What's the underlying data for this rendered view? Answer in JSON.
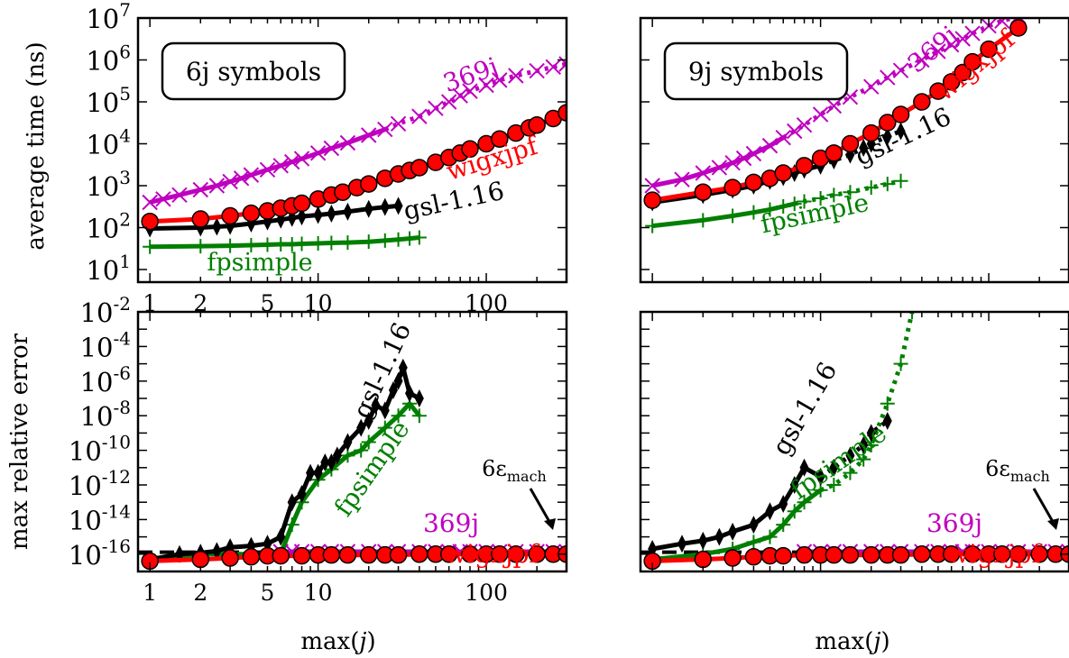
{
  "figure": {
    "xlabel_upper_left": "",
    "xlabel_left": "max(",
    "xlabel_var": "j",
    "xlabel_right": ")",
    "ylabel_top": "average time (ns)",
    "ylabel_bottom": "max relative error",
    "eps_label_main": "6ε",
    "eps_label_sub": "mach"
  },
  "chart_data": [
    {
      "type": "line",
      "panel": "top-left",
      "box_label": "6j symbols",
      "xscale": "log",
      "yscale": "log",
      "xlim": [
        0.85,
        300
      ],
      "ylim": [
        5,
        10000000
      ],
      "xticks": [
        1,
        2,
        5,
        10,
        100
      ],
      "yticks": [
        10,
        100,
        1000,
        10000,
        100000,
        1000000,
        10000000
      ],
      "ytick_labels": [
        [
          "10",
          "1"
        ],
        [
          "10",
          "2"
        ],
        [
          "10",
          "3"
        ],
        [
          "10",
          "4"
        ],
        [
          "10",
          "5"
        ],
        [
          "10",
          "6"
        ],
        [
          "10",
          "7"
        ]
      ],
      "series": [
        {
          "name": "369j",
          "color": "#bf00bf",
          "marker": "x",
          "x": [
            1,
            1.2,
            1.5,
            2,
            2.5,
            3,
            3.5,
            4,
            5,
            6,
            7,
            8,
            10,
            12,
            15,
            20,
            25,
            30,
            40,
            50,
            60,
            70,
            80,
            100,
            120,
            150,
            200,
            250,
            300
          ],
          "y": [
            400,
            480,
            600,
            800,
            1000,
            1250,
            1500,
            1800,
            2400,
            3000,
            3700,
            4400,
            6000,
            7800,
            10500,
            16000,
            22000,
            30000,
            45000,
            70000,
            100000,
            140000,
            180000,
            250000,
            330000,
            420000,
            550000,
            680000,
            800000
          ]
        },
        {
          "name": "wigxjpf",
          "color": "#ff0000",
          "marker": "o",
          "x": [
            1,
            2,
            3,
            4,
            5,
            6,
            7,
            8,
            10,
            12,
            14,
            17,
            20,
            25,
            30,
            35,
            40,
            50,
            60,
            70,
            80,
            100,
            120,
            150,
            180,
            200,
            250,
            300
          ],
          "y": [
            140,
            160,
            190,
            220,
            250,
            290,
            330,
            380,
            480,
            600,
            700,
            900,
            1100,
            1500,
            1900,
            2300,
            2700,
            3600,
            4700,
            6000,
            7500,
            10000,
            13000,
            18000,
            24000,
            28000,
            40000,
            55000
          ]
        },
        {
          "name": "gsl-1.16",
          "color": "#000000",
          "marker": "d",
          "x": [
            1,
            2,
            2.5,
            3,
            4,
            5,
            6,
            7,
            8,
            10,
            12,
            15,
            20,
            25,
            30
          ],
          "y": [
            95,
            100,
            105,
            110,
            125,
            140,
            155,
            170,
            185,
            200,
            215,
            240,
            280,
            310,
            330
          ]
        },
        {
          "name": "fpsimple",
          "color": "#007f00",
          "marker": "+",
          "x": [
            1,
            2,
            3,
            4,
            5,
            6,
            7,
            8,
            10,
            12,
            15,
            20,
            25,
            30,
            35,
            40
          ],
          "y": [
            35,
            36,
            37,
            38,
            39,
            40,
            40,
            41,
            42,
            43,
            44,
            46,
            49,
            52,
            55,
            58
          ]
        }
      ],
      "series_labels": [
        "369j",
        "wigxjpf",
        "gsl-1.16",
        "fpsimple"
      ]
    },
    {
      "type": "line",
      "panel": "top-right",
      "box_label": "9j symbols",
      "xscale": "log",
      "yscale": "log",
      "xlim": [
        0.85,
        300
      ],
      "ylim": [
        5,
        10000000
      ],
      "series": [
        {
          "name": "369j",
          "color": "#bf00bf",
          "marker": "x",
          "x": [
            1,
            1.5,
            2,
            2.5,
            3,
            3.5,
            4,
            5,
            6,
            7,
            8,
            10,
            12,
            15,
            20,
            25,
            30,
            40,
            50,
            60,
            70,
            80,
            100,
            120,
            150,
            200
          ],
          "y": [
            1000,
            1400,
            2000,
            2700,
            3500,
            4500,
            5800,
            9000,
            14000,
            20000,
            28000,
            50000,
            80000,
            130000,
            230000,
            380000,
            560000,
            1000000,
            1600000,
            2300000,
            3200000,
            4300000,
            6500000,
            8500000,
            11000000,
            16000000
          ]
        },
        {
          "name": "wigxjpf",
          "color": "#ff0000",
          "marker": "o",
          "x": [
            1,
            2,
            3,
            4,
            5,
            6,
            8,
            10,
            12,
            15,
            20,
            25,
            30,
            40,
            50,
            60,
            70,
            80,
            100,
            150
          ],
          "y": [
            450,
            700,
            900,
            1200,
            1500,
            2000,
            3000,
            4500,
            6000,
            10000,
            18000,
            32000,
            50000,
            100000,
            180000,
            300000,
            500000,
            900000,
            1800000,
            5800000
          ]
        },
        {
          "name": "gsl-1.16",
          "color": "#000000",
          "marker": "d",
          "x": [
            1,
            2,
            3,
            4,
            5,
            6,
            7,
            8,
            10,
            12,
            15,
            18,
            20,
            25,
            30
          ],
          "y": [
            400,
            600,
            800,
            1000,
            1300,
            1600,
            2000,
            2400,
            3000,
            4000,
            5500,
            8000,
            10000,
            15000,
            20000
          ]
        },
        {
          "name": "fpsimple",
          "color": "#007f00",
          "marker": "+",
          "x": [
            1,
            2,
            3,
            4,
            5,
            6,
            7,
            8,
            10,
            12,
            15,
            20,
            25,
            30
          ],
          "y": [
            110,
            150,
            190,
            230,
            270,
            320,
            370,
            420,
            500,
            600,
            700,
            900,
            1100,
            1300
          ]
        }
      ],
      "series_labels": [
        "369j",
        "wigxjpf",
        "gsl-1.16",
        "fpsimple"
      ]
    },
    {
      "type": "line",
      "panel": "bottom-left",
      "xscale": "log",
      "yscale": "log",
      "xlim": [
        0.85,
        300
      ],
      "ylim": [
        1e-17,
        0.01
      ],
      "xticks": [
        1,
        2,
        5,
        10,
        100
      ],
      "yticks": [
        1e-16,
        1e-14,
        1e-12,
        1e-10,
        1e-08,
        1e-06,
        0.0001,
        0.01
      ],
      "ytick_labels": [
        [
          "10",
          "-16"
        ],
        [
          "10",
          "-14"
        ],
        [
          "10",
          "-12"
        ],
        [
          "10",
          "-10"
        ],
        [
          "10",
          "-8"
        ],
        [
          "10",
          "-6"
        ],
        [
          "10",
          "-4"
        ],
        [
          "10",
          "-2"
        ]
      ],
      "hline_6eps_mach": 1.3e-16,
      "series": [
        {
          "name": "369j",
          "color": "#bf00bf",
          "marker": "x",
          "x": [
            6,
            7,
            8,
            10,
            12,
            15,
            20,
            25,
            30,
            40,
            50,
            60,
            70,
            80,
            100,
            120,
            150,
            200,
            250,
            300
          ],
          "y": [
            1.4e-16,
            1.4e-16,
            1.4e-16,
            1.4e-16,
            1.4e-16,
            1.4e-16,
            1.4e-16,
            1.4e-16,
            1.4e-16,
            1.4e-16,
            1.4e-16,
            1.4e-16,
            1.4e-16,
            1.4e-16,
            1.4e-16,
            1.4e-16,
            1.4e-16,
            1.4e-16,
            1.4e-16,
            1.4e-16
          ]
        },
        {
          "name": "wigxjpf",
          "color": "#ff0000",
          "marker": "o",
          "x": [
            1,
            2,
            3,
            4,
            5,
            6,
            8,
            10,
            12,
            15,
            20,
            25,
            30,
            40,
            50,
            60,
            80,
            100,
            120,
            150,
            200,
            250,
            300
          ],
          "y": [
            4e-17,
            5e-17,
            6e-17,
            7e-17,
            8e-17,
            8e-17,
            8e-17,
            9e-17,
            9e-17,
            9e-17,
            9e-17,
            9e-17,
            9e-17,
            1e-16,
            1e-16,
            1e-16,
            1e-16,
            1e-16,
            1e-16,
            1e-16,
            1e-16,
            1e-16,
            1e-16
          ]
        },
        {
          "name": "gsl-1.16",
          "color": "#000000",
          "marker": "d",
          "x": [
            1,
            1.5,
            2,
            2.5,
            3,
            4,
            5,
            6,
            7,
            8,
            9,
            10,
            11,
            12,
            13,
            15,
            18,
            20,
            22,
            25,
            28,
            30,
            32,
            35,
            40
          ],
          "y": [
            5e-17,
            1e-16,
            1.2e-16,
            1.5e-16,
            2.5e-16,
            3e-16,
            4e-16,
            1e-15,
            1e-13,
            3e-13,
            5e-12,
            5e-12,
            2e-11,
            2e-11,
            5e-11,
            3e-10,
            2e-09,
            5e-09,
            4e-08,
            2e-08,
            3e-07,
            1e-06,
            6e-06,
            2e-07,
            1e-07
          ]
        },
        {
          "name": "fpsimple",
          "color": "#007f00",
          "marker": "+",
          "x": [
            1,
            2,
            3,
            4,
            5,
            6,
            7,
            8,
            10,
            12,
            15,
            18,
            20,
            25,
            30,
            35,
            40
          ],
          "y": [
            5e-17,
            1e-16,
            1e-16,
            1e-16,
            1e-16,
            1e-16,
            5e-15,
            1e-13,
            2e-12,
            8e-12,
            5e-11,
            1e-10,
            3e-10,
            2e-09,
            1e-08,
            5e-08,
            1e-08
          ]
        }
      ],
      "series_labels": [
        "369j",
        "wigxjpf",
        "gsl-1.16",
        "fpsimple"
      ]
    },
    {
      "type": "line",
      "panel": "bottom-right",
      "xscale": "log",
      "yscale": "log",
      "xlim": [
        0.85,
        300
      ],
      "ylim": [
        1e-17,
        0.01
      ],
      "hline_6eps_mach": 1.3e-16,
      "series": [
        {
          "name": "369j",
          "color": "#bf00bf",
          "marker": "x",
          "x": [
            8,
            10,
            12,
            15,
            20,
            25,
            30,
            40,
            50,
            60,
            70,
            80,
            100,
            120,
            150,
            200,
            250,
            300
          ],
          "y": [
            1.4e-16,
            1.4e-16,
            1.4e-16,
            1.4e-16,
            1.4e-16,
            1.4e-16,
            1.4e-16,
            1.4e-16,
            1.4e-16,
            1.4e-16,
            1.4e-16,
            1.4e-16,
            1.4e-16,
            1.4e-16,
            1.4e-16,
            1.4e-16,
            1.4e-16,
            1.4e-16
          ]
        },
        {
          "name": "wigxjpf",
          "color": "#ff0000",
          "marker": "o",
          "x": [
            1,
            2,
            3,
            4,
            5,
            6,
            8,
            10,
            12,
            15,
            20,
            25,
            30,
            40,
            50,
            60,
            80,
            100,
            120,
            150,
            200,
            250,
            300
          ],
          "y": [
            4e-17,
            5e-17,
            6e-17,
            7e-17,
            8e-17,
            8e-17,
            9e-17,
            9e-17,
            9e-17,
            9e-17,
            9e-17,
            9e-17,
            9e-17,
            1e-16,
            1e-16,
            1e-16,
            1e-16,
            1e-16,
            1e-16,
            1e-16,
            1e-16,
            1e-16,
            1e-16
          ]
        },
        {
          "name": "gsl-1.16",
          "color": "#000000",
          "marker": "d",
          "x": [
            1,
            1.5,
            2,
            2.5,
            3,
            4,
            5,
            6,
            7,
            8,
            10,
            12,
            15,
            18,
            20,
            25
          ],
          "y": [
            2e-16,
            4e-16,
            6e-16,
            1e-15,
            2e-15,
            5e-15,
            3e-14,
            8e-14,
            1e-12,
            1e-11,
            3e-12,
            1e-11,
            5e-11,
            2e-10,
            1e-09,
            5e-09
          ]
        },
        {
          "name": "fpsimple",
          "color": "#007f00",
          "marker": "+",
          "x": [
            1,
            2,
            3,
            4,
            5,
            6,
            7,
            8,
            10,
            12,
            15,
            18,
            20,
            25,
            30,
            35
          ],
          "y": [
            5e-17,
            1e-16,
            2e-16,
            5e-16,
            1e-15,
            5e-15,
            3e-14,
            1e-13,
            5e-13,
            1e-12,
            5e-12,
            3e-11,
            2e-10,
            5e-08,
            1e-05,
            0.01
          ]
        }
      ],
      "series_labels": [
        "369j",
        "wigxjpf",
        "gsl-1.16",
        "fpsimple"
      ]
    }
  ]
}
